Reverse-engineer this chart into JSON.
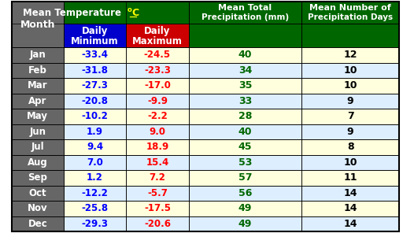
{
  "months": [
    "Jan",
    "Feb",
    "Mar",
    "Apr",
    "May",
    "Jun",
    "Jul",
    "Aug",
    "Sep",
    "Oct",
    "Nov",
    "Dec"
  ],
  "daily_min": [
    -33.4,
    -31.8,
    -27.3,
    -20.8,
    -10.2,
    1.9,
    9.4,
    7.0,
    1.2,
    -12.2,
    -25.8,
    -29.3
  ],
  "daily_max": [
    -24.5,
    -23.3,
    -17.0,
    -9.9,
    -2.2,
    9.0,
    18.9,
    15.4,
    7.2,
    -5.7,
    -17.5,
    -20.6
  ],
  "precipitation_mm": [
    40,
    34,
    35,
    33,
    28,
    40,
    45,
    53,
    57,
    56,
    49,
    49
  ],
  "precipitation_days": [
    12,
    10,
    10,
    9,
    7,
    9,
    8,
    10,
    11,
    14,
    14,
    14
  ],
  "header_bg": "#006600",
  "header_text": "#ffffff",
  "subheader_min_bg": "#0000cc",
  "subheader_max_bg": "#cc0000",
  "month_col_bg": "#666666",
  "month_col_text": "#ffffff",
  "row_bg_odd": "#ffffdd",
  "row_bg_even": "#ddeeff",
  "min_text_color": "#0000ff",
  "max_text_color": "#ff0000",
  "precip_text_color": "#006600",
  "days_text_color": "#000000",
  "border_color": "#000000",
  "superscript_color": "#ffff00",
  "underline_color": "#ffff00"
}
